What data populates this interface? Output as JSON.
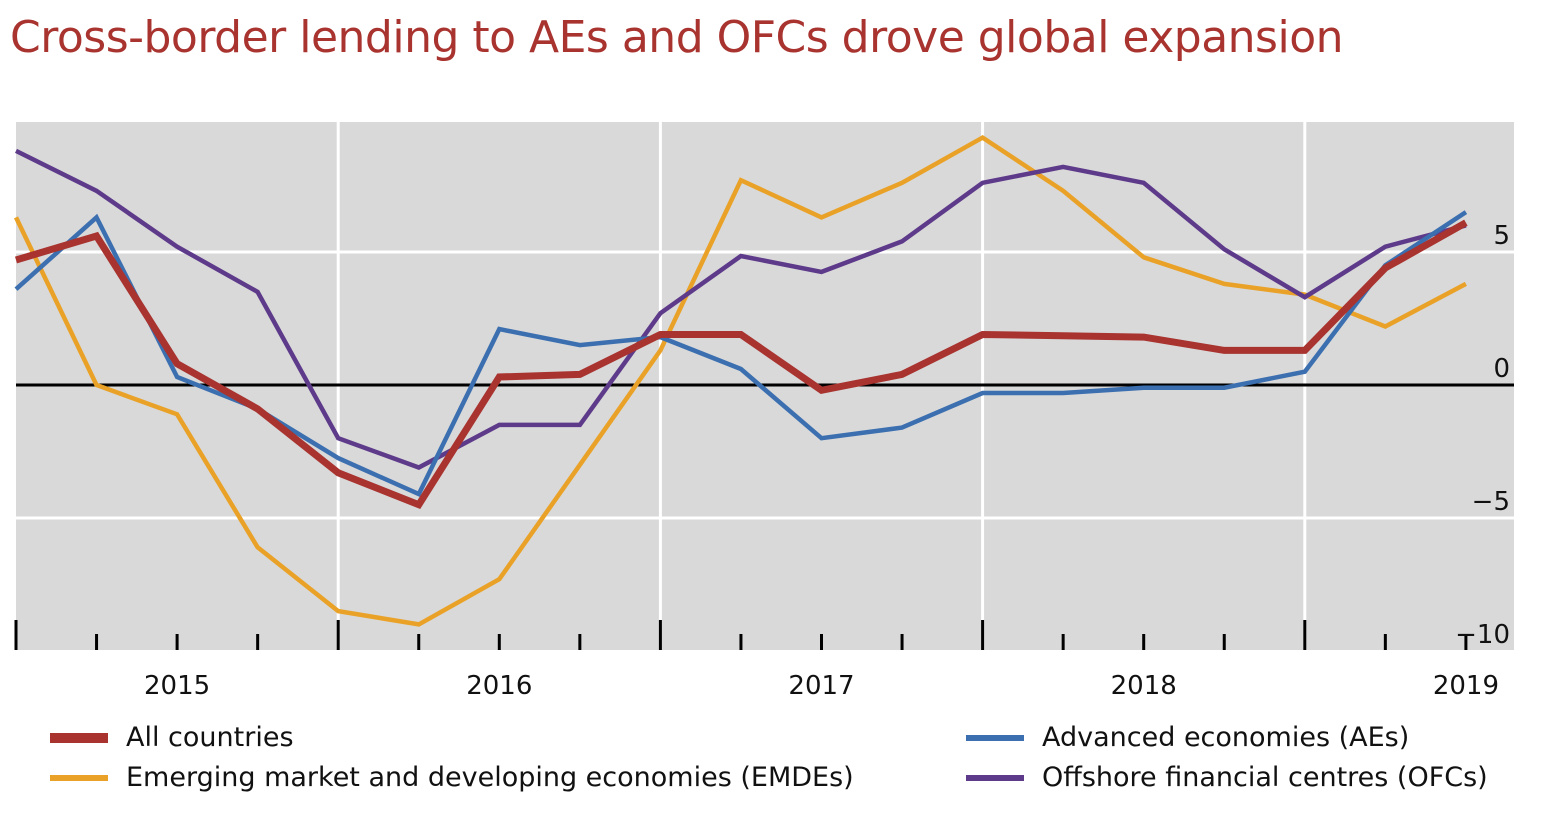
{
  "title": "Cross-border lending to AEs and OFCs drove global expansion",
  "chart_data": {
    "type": "line",
    "title": "Cross-border lending to AEs and OFCs drove global expansion",
    "xlabel": "",
    "ylabel": "",
    "ylim": [
      -10,
      10
    ],
    "yticks": [
      5,
      0,
      -5,
      -10
    ],
    "ytick_labels": [
      "5",
      "0",
      "−5",
      "−10"
    ],
    "y_axis_side": "right",
    "x": [
      "2014Q3",
      "2014Q4",
      "2015Q1",
      "2015Q2",
      "2015Q3",
      "2015Q4",
      "2016Q1",
      "2016Q2",
      "2016Q3",
      "2016Q4",
      "2017Q1",
      "2017Q2",
      "2017Q3",
      "2017Q4",
      "2018Q1",
      "2018Q2",
      "2018Q3",
      "2018Q4",
      "2019Q1"
    ],
    "xtick_labels": [
      "2015",
      "2016",
      "2017",
      "2018",
      "2019"
    ],
    "grid": true,
    "legend_position": "bottom",
    "series": [
      {
        "name": "All countries",
        "color": "#a8332f",
        "values": [
          4.7,
          5.6,
          0.8,
          -0.9,
          -3.3,
          -4.5,
          0.3,
          0.4,
          1.9,
          1.9,
          -0.2,
          0.4,
          1.9,
          1.85,
          1.8,
          1.3,
          1.3,
          4.4,
          6.1
        ]
      },
      {
        "name": "Advanced economies (AEs)",
        "color": "#3b6fb0",
        "values": [
          3.6,
          6.3,
          0.3,
          -0.9,
          -2.75,
          -4.1,
          2.1,
          1.5,
          1.8,
          0.6,
          -2.0,
          -1.6,
          -0.3,
          -0.3,
          -0.1,
          -0.1,
          0.5,
          4.5,
          6.5
        ]
      },
      {
        "name": "Emerging market and developing economies (EMDEs)",
        "color": "#e9a227",
        "values": [
          6.3,
          0.0,
          -1.1,
          -6.1,
          -8.5,
          -9.0,
          -7.3,
          -3.0,
          1.3,
          7.7,
          6.3,
          7.6,
          9.3,
          7.3,
          4.8,
          3.8,
          3.4,
          2.2,
          3.8
        ]
      },
      {
        "name": "Offshore financial centres (OFCs)",
        "color": "#5e3a8a",
        "values": [
          8.8,
          7.3,
          5.2,
          3.5,
          -2.0,
          -3.1,
          -1.5,
          -1.5,
          2.7,
          4.85,
          4.25,
          5.4,
          7.6,
          8.2,
          7.6,
          5.1,
          3.3,
          5.2,
          6.0
        ]
      }
    ]
  },
  "legend": {
    "items": [
      {
        "label": "All countries",
        "color": "#a8332f"
      },
      {
        "label": "Emerging market and developing economies (EMDEs)",
        "color": "#e9a227"
      },
      {
        "label": "Advanced economies (AEs)",
        "color": "#3b6fb0"
      },
      {
        "label": "Offshore financial centres (OFCs)",
        "color": "#5e3a8a"
      }
    ]
  }
}
